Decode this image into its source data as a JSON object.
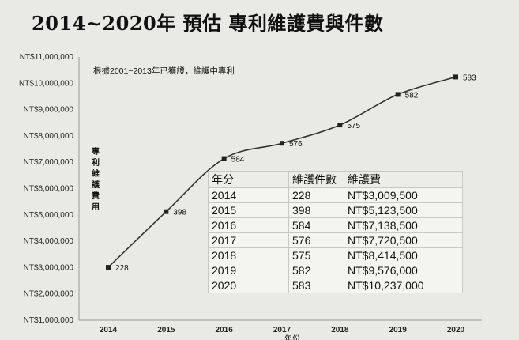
{
  "title": "2014~2020年 預估 專利維護費與件數",
  "chart_data": {
    "type": "line",
    "title": "2014~2020年 預估 專利維護費與件數",
    "annotation": "根據2001~2013年已獲證，維護中專利",
    "ylabel": "專利維護費用",
    "xlabel": "年份",
    "categories": [
      "2014",
      "2015",
      "2016",
      "2017",
      "2018",
      "2019",
      "2020"
    ],
    "values": [
      3009500,
      5123500,
      7138500,
      7720500,
      8414500,
      9576000,
      10237000
    ],
    "point_labels": [
      "228",
      "398",
      "584",
      "576",
      "575",
      "582",
      "583"
    ],
    "ylim": [
      1000000,
      11000000
    ],
    "yticks": [
      1000000,
      2000000,
      3000000,
      4000000,
      5000000,
      6000000,
      7000000,
      8000000,
      9000000,
      10000000,
      11000000
    ],
    "ytick_labels": [
      "NT$1,000,000",
      "NT$2,000,000",
      "NT$3,000,000",
      "NT$4,000,000",
      "NT$5,000,000",
      "NT$6,000,000",
      "NT$7,000,000",
      "NT$8,000,000",
      "NT$9,000,000",
      "NT$10,000,000",
      "NT$11,000,000"
    ],
    "line_color": "#333333",
    "grid": false
  },
  "table": {
    "headers": [
      "年分",
      "維護件數",
      "維護費"
    ],
    "rows": [
      [
        "2014",
        "228",
        "NT$3,009,500"
      ],
      [
        "2015",
        "398",
        "NT$5,123,500"
      ],
      [
        "2016",
        "584",
        "NT$7,138,500"
      ],
      [
        "2017",
        "576",
        "NT$7,720,500"
      ],
      [
        "2018",
        "575",
        "NT$8,414,500"
      ],
      [
        "2019",
        "582",
        "NT$9,576,000"
      ],
      [
        "2020",
        "583",
        "NT$10,237,000"
      ]
    ]
  }
}
